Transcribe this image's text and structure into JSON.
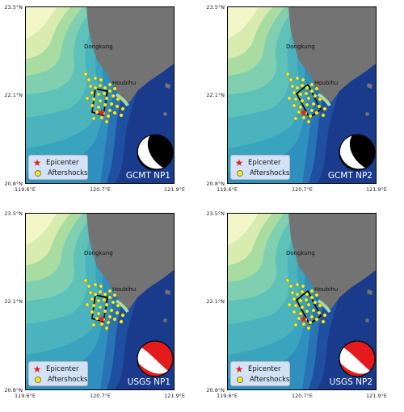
{
  "axes": {
    "y_ticks": [
      "23.5°N",
      "22.1°N",
      "20.8°N"
    ],
    "x_ticks": [
      "119.6°E",
      "120.7°E",
      "121.9°E"
    ]
  },
  "places": {
    "north_town": "Dongkung",
    "south_town": "Houbihu"
  },
  "legend": {
    "epicenter": "Epicenter",
    "aftershocks": "Aftershocks"
  },
  "panels": [
    {
      "title": "GCMT NP1",
      "mechanism": "gcmt"
    },
    {
      "title": "GCMT NP2",
      "mechanism": "gcmt"
    },
    {
      "title": "USGS NP1",
      "mechanism": "usgs"
    },
    {
      "title": "USGS NP2",
      "mechanism": "usgs"
    }
  ],
  "colors": {
    "land": "#737373",
    "deep_sea": "#1a3b8c",
    "shelf": "#a8dca0",
    "beach_gcmt": "#000000",
    "beach_usgs": "#e41a1c",
    "aftershock": "#ffee00",
    "epicenter": "#e1251b"
  }
}
